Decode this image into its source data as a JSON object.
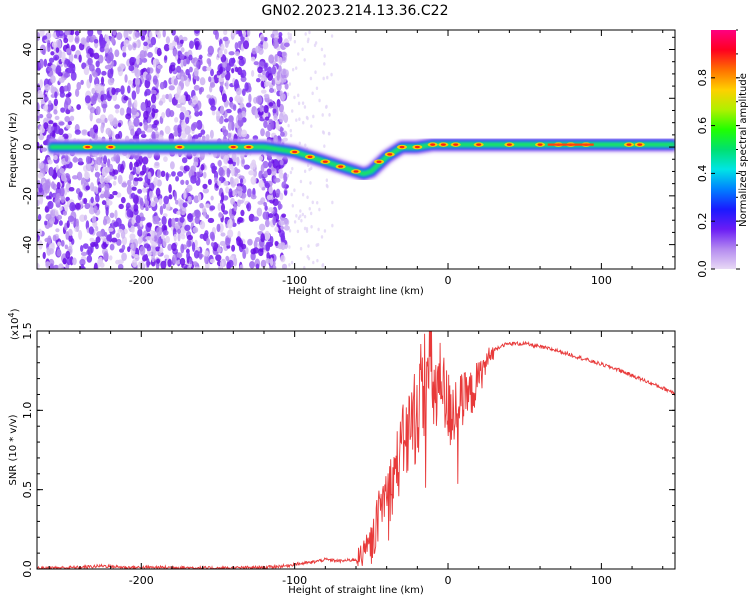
{
  "title": "GN02.2023.214.13.36.C22",
  "chart_data": [
    {
      "type": "heatmap",
      "xlabel": "Height of straight line (km)",
      "ylabel": "Frequency (Hz)",
      "xlim": [
        -268,
        148
      ],
      "ylim": [
        -50,
        48
      ],
      "xticks": [
        -200,
        -100,
        0,
        100
      ],
      "yticks": [
        -40,
        -20,
        0,
        20,
        40
      ],
      "colorbar": {
        "label": "Normalized spectral amplitude",
        "range": [
          0,
          1
        ],
        "ticks": [
          "0.0",
          "0.2",
          "0.4",
          "0.6",
          "0.8"
        ],
        "colors": [
          "#e8d9f5",
          "#b48af0",
          "#6a1cf5",
          "#1a1aff",
          "#0080ff",
          "#00e5e5",
          "#00e070",
          "#20ff00",
          "#b0f000",
          "#ffd000",
          "#ff7000",
          "#ff0020",
          "#ff0080"
        ]
      },
      "ridge": {
        "x": [
          -260,
          -240,
          -220,
          -200,
          -180,
          -160,
          -140,
          -120,
          -110,
          -100,
          -90,
          -80,
          -70,
          -60,
          -55,
          -50,
          -45,
          -40,
          -35,
          -30,
          -20,
          -10,
          0,
          20,
          40,
          60,
          80,
          100,
          120,
          148
        ],
        "y": [
          0,
          0,
          0,
          0,
          0,
          0,
          0,
          0,
          -1,
          -2,
          -4,
          -6,
          -8,
          -10,
          -11,
          -10,
          -7,
          -4,
          -2,
          0,
          0,
          1,
          1,
          1,
          1,
          1,
          1,
          1,
          1,
          1
        ]
      }
    },
    {
      "type": "line",
      "xlabel": "Height of straight line (km)",
      "ylabel": "SNR (10 * v/v)",
      "scale_label": "(x10",
      "scale_exp": "4",
      "scale_close": ")",
      "xlim": [
        -268,
        148
      ],
      "ylim": [
        0,
        1.5
      ],
      "xticks": [
        -200,
        -100,
        0,
        100
      ],
      "yticks": [
        "0.0",
        "0.5",
        "1.0",
        "1.5"
      ],
      "series": [
        {
          "color": "#e83a3a",
          "x": [
            -268,
            -240,
            -225,
            -210,
            -180,
            -150,
            -120,
            -105,
            -100,
            -90,
            -80,
            -70,
            -60,
            -55,
            -50,
            -45,
            -42,
            -38,
            -35,
            -30,
            -25,
            -20,
            -17,
            -15,
            -12,
            -8,
            -5,
            0,
            5,
            10,
            15,
            20,
            25,
            30,
            35,
            40,
            50,
            60,
            70,
            80,
            90,
            100,
            110,
            120,
            130,
            140,
            148
          ],
          "y": [
            0.005,
            0.01,
            0.02,
            0.01,
            0.01,
            0.005,
            0.01,
            0.02,
            0.03,
            0.04,
            0.06,
            0.05,
            0.06,
            0.1,
            0.15,
            0.35,
            0.45,
            0.5,
            0.6,
            0.75,
            0.9,
            1.0,
            1.15,
            1.2,
            1.25,
            1.1,
            1.15,
            1.0,
            1.0,
            1.05,
            1.1,
            1.2,
            1.3,
            1.38,
            1.41,
            1.42,
            1.42,
            1.4,
            1.38,
            1.35,
            1.32,
            1.29,
            1.26,
            1.22,
            1.18,
            1.14,
            1.11
          ]
        }
      ]
    }
  ]
}
